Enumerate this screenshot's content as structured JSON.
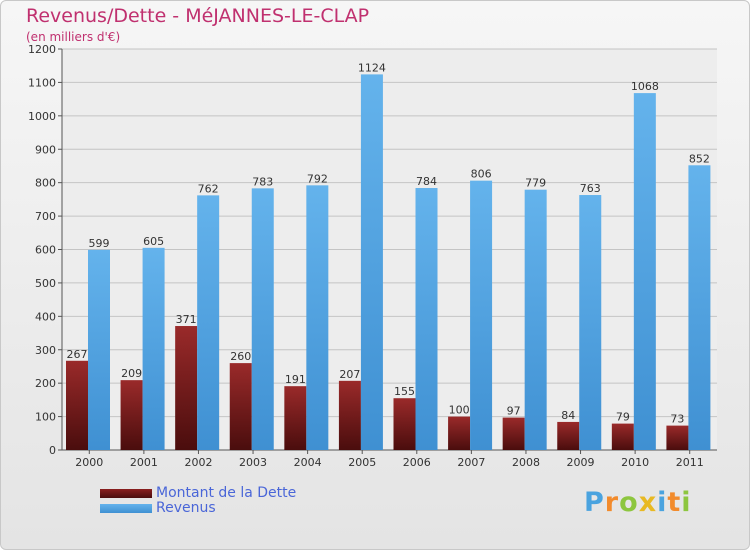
{
  "title": "Revenus/Dette - MéJANNES-LE-CLAP",
  "subtitle": "(en milliers d'€)",
  "logo": {
    "letters": [
      "P",
      "r",
      "o",
      "x",
      "i",
      "t",
      "i"
    ],
    "colors": [
      "#4aa3df",
      "#f28b2c",
      "#8dc63f",
      "#e8b923",
      "#4aa3df",
      "#f28b2c",
      "#8dc63f"
    ]
  },
  "chart_data": {
    "type": "bar",
    "categories": [
      "2000",
      "2001",
      "2002",
      "2003",
      "2004",
      "2005",
      "2006",
      "2007",
      "2008",
      "2009",
      "2010",
      "2011"
    ],
    "series": [
      {
        "name": "Montant de la Dette",
        "color": "#7a1a1a",
        "values": [
          267,
          209,
          371,
          260,
          191,
          207,
          155,
          100,
          97,
          84,
          79,
          73
        ]
      },
      {
        "name": "Revenus",
        "color": "#4ea1e0",
        "values": [
          599,
          605,
          762,
          783,
          792,
          1124,
          784,
          806,
          779,
          763,
          1068,
          852
        ]
      }
    ],
    "yticks": [
      "0",
      "100",
      "200",
      "300",
      "400",
      "500",
      "600",
      "700",
      "800",
      "900",
      "1000",
      "1100",
      "1200"
    ],
    "ylim": [
      0,
      1200
    ],
    "grid": true,
    "legend": "bottom-left"
  }
}
